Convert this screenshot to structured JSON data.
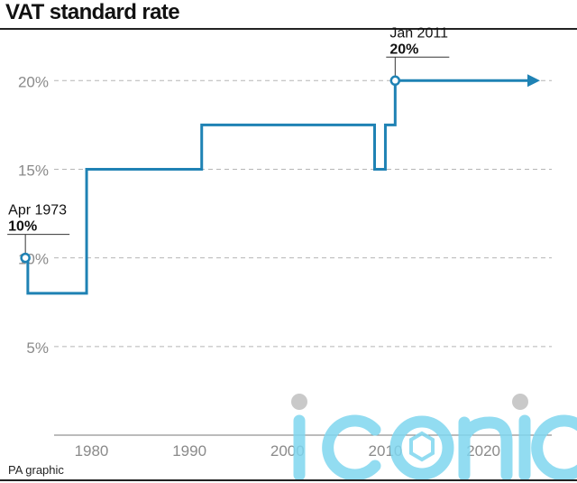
{
  "header": {
    "title": "VAT standard rate"
  },
  "footer": {
    "credit": "PA graphic"
  },
  "watermark": {
    "text": "iconic",
    "color": "#7fd6ef"
  },
  "colors": {
    "series": "#1f82b4",
    "grid": "#b5b5b5",
    "tick": "#8a8a8a"
  },
  "chart_data": {
    "type": "line",
    "title": "VAT standard rate",
    "step": "after",
    "xlabel": "",
    "ylabel": "",
    "xlim": [
      1972.5,
      2024.5
    ],
    "ylim": [
      0,
      22
    ],
    "x_ticks": [
      1980,
      1990,
      2000,
      2010,
      2020
    ],
    "y_ticks": [
      5,
      10,
      15,
      20
    ],
    "y_tick_labels": [
      "5%",
      "10%",
      "15%",
      "20%"
    ],
    "grid": true,
    "arrow_end": true,
    "series": [
      {
        "x": [
          1973.25,
          1973.5,
          1979.5,
          1991.25,
          2008.9,
          2010.0,
          2011.0,
          2024.5
        ],
        "y": [
          10,
          8,
          15,
          17.5,
          15,
          17.5,
          20,
          20
        ]
      }
    ],
    "annotations": [
      {
        "x": 1973.25,
        "y": 10,
        "label": "Apr 1973",
        "value": "10%"
      },
      {
        "x": 2011.0,
        "y": 20,
        "label": "Jan 2011",
        "value": "20%"
      }
    ]
  }
}
